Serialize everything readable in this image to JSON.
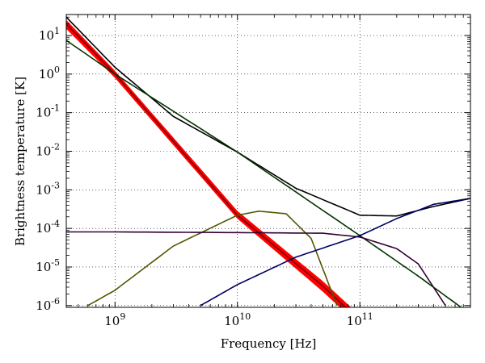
{
  "chart_data": {
    "type": "line",
    "xlabel": "Frequency [Hz]",
    "ylabel": "Brightness temperature [K]",
    "xscale": "log",
    "yscale": "log",
    "xlim": [
      400000000,
      800000000000
    ],
    "ylim": [
      9e-07,
      35
    ],
    "grid": true,
    "x_ticks": [
      {
        "value": 1000000000,
        "base": "10",
        "exp": "9"
      },
      {
        "value": 10000000000,
        "base": "10",
        "exp": "10"
      },
      {
        "value": 100000000000,
        "base": "10",
        "exp": "11"
      }
    ],
    "y_ticks": [
      {
        "value": 10,
        "base": "10",
        "exp": "1"
      },
      {
        "value": 1,
        "base": "10",
        "exp": "0"
      },
      {
        "value": 0.1,
        "base": "10",
        "exp": "-1"
      },
      {
        "value": 0.01,
        "base": "10",
        "exp": "-2"
      },
      {
        "value": 0.001,
        "base": "10",
        "exp": "-3"
      },
      {
        "value": 0.0001,
        "base": "10",
        "exp": "-4"
      },
      {
        "value": 1e-05,
        "base": "10",
        "exp": "-5"
      },
      {
        "value": 1e-06,
        "base": "10",
        "exp": "-6"
      }
    ],
    "series": [
      {
        "color": "#ff0000",
        "style": "band",
        "x": [
          400000000,
          1000000000,
          10000000000,
          50000000000,
          100000000000
        ],
        "y_low": [
          15,
          0.8,
          0.00018,
          2.3e-06,
          3e-07
        ],
        "y_high": [
          25,
          1.2,
          0.00028,
          4.2e-06,
          5.5e-07
        ]
      },
      {
        "color": "#7f0000",
        "x": [
          400000000,
          1000000000,
          10000000000,
          50000000000,
          100000000000
        ],
        "y": [
          20,
          1.0,
          0.00022,
          3.2e-06,
          4e-07
        ]
      },
      {
        "color": "#000000",
        "x": [
          400000000,
          1000000000,
          3000000000,
          10000000000,
          30000000000,
          100000000000,
          200000000000,
          400000000000,
          800000000000
        ],
        "y": [
          30,
          1.5,
          0.08,
          0.0095,
          0.0011,
          0.00022,
          0.00021,
          0.00037,
          0.0006
        ]
      },
      {
        "color": "#003300",
        "x": [
          400000000,
          1000000000,
          10000000000,
          100000000000,
          300000000000,
          800000000000
        ],
        "y": [
          7.5,
          1.0,
          0.0095,
          6.5e-05,
          5.8e-06,
          6e-07
        ]
      },
      {
        "color": "#555500",
        "x": [
          600000000,
          1000000000,
          3000000000,
          10000000000,
          15000000000,
          25000000000,
          40000000000,
          65000000000
        ],
        "y": [
          1e-06,
          2.5e-06,
          3.5e-05,
          0.00022,
          0.00028,
          0.00024,
          5.5e-05,
          1e-06
        ]
      },
      {
        "color": "#330033",
        "x": [
          400000000,
          1000000000,
          10000000000,
          50000000000,
          100000000000,
          200000000000,
          300000000000,
          500000000000
        ],
        "y": [
          8.1e-05,
          8.1e-05,
          7.8e-05,
          7.5e-05,
          6e-05,
          3e-05,
          1.2e-05,
          1e-06
        ]
      },
      {
        "color": "#000066",
        "x": [
          5000000000,
          10000000000,
          30000000000,
          100000000000,
          200000000000,
          400000000000,
          800000000000
        ],
        "y": [
          1e-06,
          3.5e-06,
          1.8e-05,
          6.5e-05,
          0.00018,
          0.00042,
          0.0006
        ]
      }
    ]
  }
}
